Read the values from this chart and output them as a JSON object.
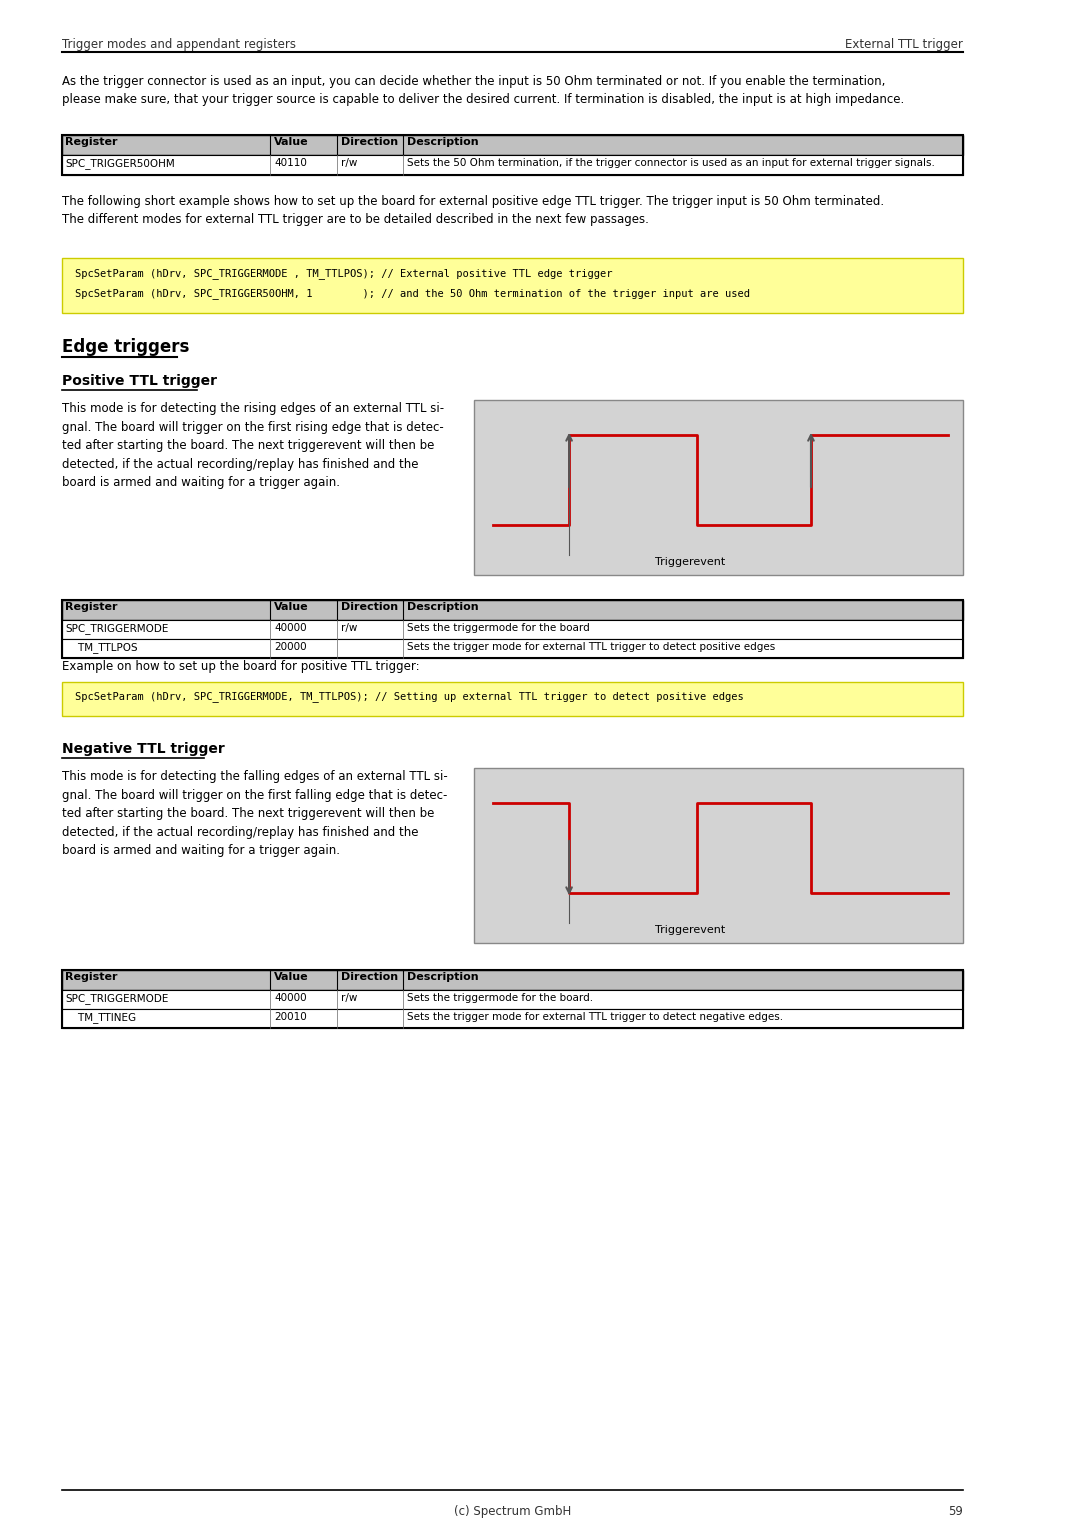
{
  "page_bg": "#ffffff",
  "header_left": "Trigger modes and appendant registers",
  "header_right": "External TTL trigger",
  "footer_text": "(c) Spectrum GmbH",
  "footer_page": "59",
  "intro_text": "As the trigger connector is used as an input, you can decide whether the input is 50 Ohm terminated or not. If you enable the termination,\nplease make sure, that your trigger source is capable to deliver the desired current. If termination is disabled, the input is at high impedance.",
  "table1_header": [
    "Register",
    "Value",
    "Direction",
    "Description"
  ],
  "table1_rows": [
    [
      "SPC_TRIGGER50OHM",
      "40110",
      "r/w",
      "Sets the 50 Ohm termination, if the trigger connector is used as an input for external trigger signals."
    ]
  ],
  "para1": "The following short example shows how to set up the board for external positive edge TTL trigger. The trigger input is 50 Ohm terminated.\nThe different modes for external TTL trigger are to be detailed described in the next few passages.",
  "code1_lines": [
    "SpcSetParam (hDrv, SPC_TRIGGERMODE , TM_TTLPOS); // External positive TTL edge trigger",
    "SpcSetParam (hDrv, SPC_TRIGGER50OHM, 1        ); // and the 50 Ohm termination of the trigger input are used"
  ],
  "section_edge": "Edge triggers",
  "subsec_pos": "Positive TTL trigger",
  "pos_text": "This mode is for detecting the rising edges of an external TTL si-\ngnal. The board will trigger on the first rising edge that is detec-\nted after starting the board. The next triggerevent will then be\ndetected, if the actual recording/replay has finished and the\nboard is armed and waiting for a trigger again.",
  "table2_header": [
    "Register",
    "Value",
    "Direction",
    "Description"
  ],
  "table2_rows": [
    [
      "SPC_TRIGGERMODE",
      "40000",
      "r/w",
      "Sets the triggermode for the board"
    ],
    [
      "    TM_TTLPOS",
      "20000",
      "",
      "Sets the trigger mode for external TTL trigger to detect positive edges"
    ]
  ],
  "example_pos": "Example on how to set up the board for positive TTL trigger:",
  "code2_lines": [
    "SpcSetParam (hDrv, SPC_TRIGGERMODE, TM_TTLPOS); // Setting up external TTL trigger to detect positive edges"
  ],
  "subsec_neg": "Negative TTL trigger",
  "neg_text": "This mode is for detecting the falling edges of an external TTL si-\ngnal. The board will trigger on the first falling edge that is detec-\nted after starting the board. The next triggerevent will then be\ndetected, if the actual recording/replay has finished and the\nboard is armed and waiting for a trigger again.",
  "table3_header": [
    "Register",
    "Value",
    "Direction",
    "Description"
  ],
  "table3_rows": [
    [
      "SPC_TRIGGERMODE",
      "40000",
      "r/w",
      "Sets the triggermode for the board."
    ],
    [
      "    TM_TTINEG",
      "20010",
      "",
      "Sets the trigger mode for external TTL trigger to detect negative edges."
    ]
  ],
  "code_bg": "#ffff99",
  "table_header_bg": "#c0c0c0",
  "table_border": "#000000",
  "diagram_bg": "#d3d3d3",
  "signal_color": "#cc0000",
  "arrow_color": "#555555",
  "triggerevent_label": "Triggerevent"
}
